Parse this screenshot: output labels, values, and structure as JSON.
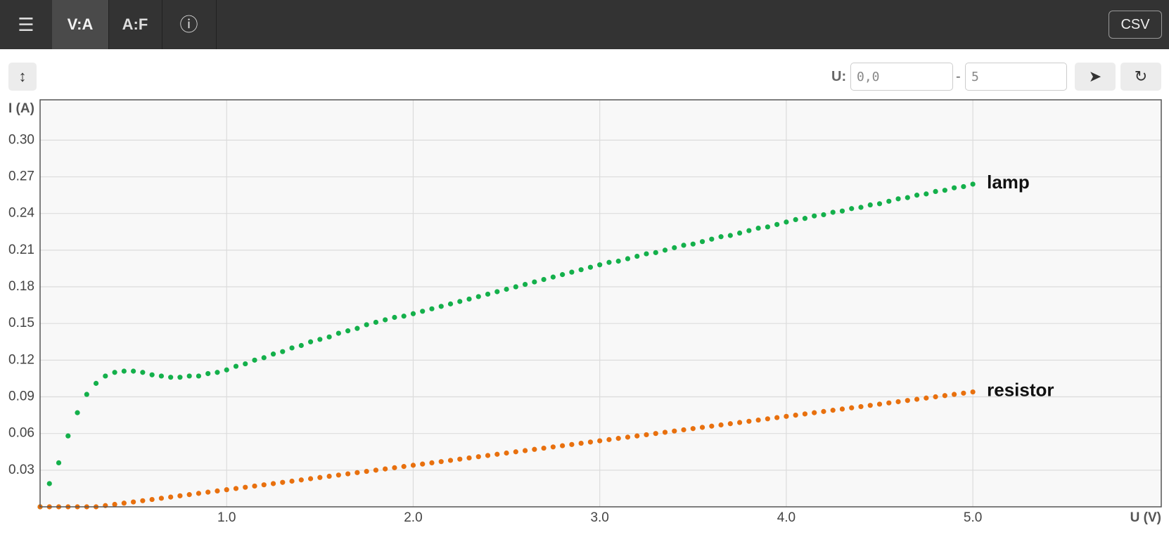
{
  "toolbar": {
    "menu": "☰",
    "tabs": [
      "V:A",
      "A:F",
      "ⓘ"
    ],
    "csv": "CSV"
  },
  "controls": {
    "toggle": "↕",
    "u_label": "U:",
    "u_from": "0,0",
    "separator": "-",
    "u_to": "5",
    "run": "➤",
    "reset": "↻"
  },
  "chart_data": {
    "type": "scatter",
    "xlabel": "U (V)",
    "ylabel": "I (A)",
    "x": [
      0,
      0.05,
      0.1,
      0.15,
      0.2,
      0.25,
      0.3,
      0.35,
      0.4,
      0.45,
      0.5,
      0.55,
      0.6,
      0.65,
      0.7,
      0.75,
      0.8,
      0.85,
      0.9,
      0.95,
      1.0,
      1.05,
      1.1,
      1.15,
      1.2,
      1.25,
      1.3,
      1.35,
      1.4,
      1.45,
      1.5,
      1.55,
      1.6,
      1.65,
      1.7,
      1.75,
      1.8,
      1.85,
      1.9,
      1.95,
      2.0,
      2.05,
      2.1,
      2.15,
      2.2,
      2.25,
      2.3,
      2.35,
      2.4,
      2.45,
      2.5,
      2.55,
      2.6,
      2.65,
      2.7,
      2.75,
      2.8,
      2.85,
      2.9,
      2.95,
      3.0,
      3.05,
      3.1,
      3.15,
      3.2,
      3.25,
      3.3,
      3.35,
      3.4,
      3.45,
      3.5,
      3.55,
      3.6,
      3.65,
      3.7,
      3.75,
      3.8,
      3.85,
      3.9,
      3.95,
      4.0,
      4.05,
      4.1,
      4.15,
      4.2,
      4.25,
      4.3,
      4.35,
      4.4,
      4.45,
      4.5,
      4.55,
      4.6,
      4.65,
      4.7,
      4.75,
      4.8,
      4.85,
      4.9,
      4.95,
      5.0
    ],
    "series": [
      {
        "name": "lamp",
        "color": "#14b04b",
        "values": [
          0,
          0.019,
          0.036,
          0.058,
          0.077,
          0.092,
          0.101,
          0.107,
          0.11,
          0.111,
          0.111,
          0.11,
          0.108,
          0.107,
          0.106,
          0.106,
          0.107,
          0.107,
          0.109,
          0.11,
          0.112,
          0.115,
          0.117,
          0.12,
          0.122,
          0.125,
          0.127,
          0.13,
          0.132,
          0.135,
          0.137,
          0.139,
          0.142,
          0.144,
          0.146,
          0.149,
          0.151,
          0.153,
          0.155,
          0.156,
          0.158,
          0.16,
          0.162,
          0.164,
          0.166,
          0.168,
          0.17,
          0.172,
          0.174,
          0.176,
          0.178,
          0.18,
          0.182,
          0.184,
          0.186,
          0.188,
          0.19,
          0.192,
          0.194,
          0.196,
          0.198,
          0.2,
          0.201,
          0.203,
          0.205,
          0.207,
          0.208,
          0.21,
          0.212,
          0.214,
          0.215,
          0.217,
          0.219,
          0.221,
          0.222,
          0.224,
          0.226,
          0.228,
          0.229,
          0.231,
          0.233,
          0.235,
          0.236,
          0.238,
          0.239,
          0.241,
          0.242,
          0.244,
          0.245,
          0.247,
          0.248,
          0.25,
          0.252,
          0.253,
          0.255,
          0.256,
          0.258,
          0.259,
          0.261,
          0.262,
          0.264
        ]
      },
      {
        "name": "resistor",
        "color": "#e8700e",
        "values": [
          0,
          0,
          0,
          0,
          0,
          0,
          0,
          0.001,
          0.002,
          0.003,
          0.004,
          0.005,
          0.006,
          0.007,
          0.008,
          0.009,
          0.01,
          0.011,
          0.012,
          0.013,
          0.014,
          0.015,
          0.016,
          0.017,
          0.018,
          0.019,
          0.02,
          0.021,
          0.022,
          0.023,
          0.024,
          0.025,
          0.026,
          0.027,
          0.028,
          0.029,
          0.03,
          0.031,
          0.032,
          0.033,
          0.034,
          0.035,
          0.036,
          0.037,
          0.038,
          0.039,
          0.04,
          0.041,
          0.042,
          0.043,
          0.044,
          0.045,
          0.046,
          0.047,
          0.048,
          0.049,
          0.05,
          0.051,
          0.052,
          0.053,
          0.054,
          0.055,
          0.056,
          0.057,
          0.058,
          0.059,
          0.06,
          0.061,
          0.062,
          0.063,
          0.064,
          0.065,
          0.066,
          0.067,
          0.068,
          0.069,
          0.07,
          0.071,
          0.072,
          0.073,
          0.074,
          0.075,
          0.076,
          0.077,
          0.078,
          0.079,
          0.08,
          0.081,
          0.082,
          0.083,
          0.084,
          0.085,
          0.086,
          0.087,
          0.088,
          0.089,
          0.09,
          0.091,
          0.092,
          0.093,
          0.094
        ]
      }
    ],
    "xlim": [
      0,
      6.01
    ],
    "ylim": [
      0,
      0.333
    ],
    "xticks": [
      {
        "value": 1,
        "label": "1.0"
      },
      {
        "value": 2,
        "label": "2.0"
      },
      {
        "value": 3,
        "label": "3.0"
      },
      {
        "value": 4,
        "label": "4.0"
      },
      {
        "value": 5,
        "label": "5.0"
      }
    ],
    "yticks": [
      0.03,
      0.06,
      0.09,
      0.12,
      0.15,
      0.18,
      0.21,
      0.24,
      0.27,
      {
        "value": 0.3,
        "label": "0.30"
      }
    ],
    "grid": true
  }
}
